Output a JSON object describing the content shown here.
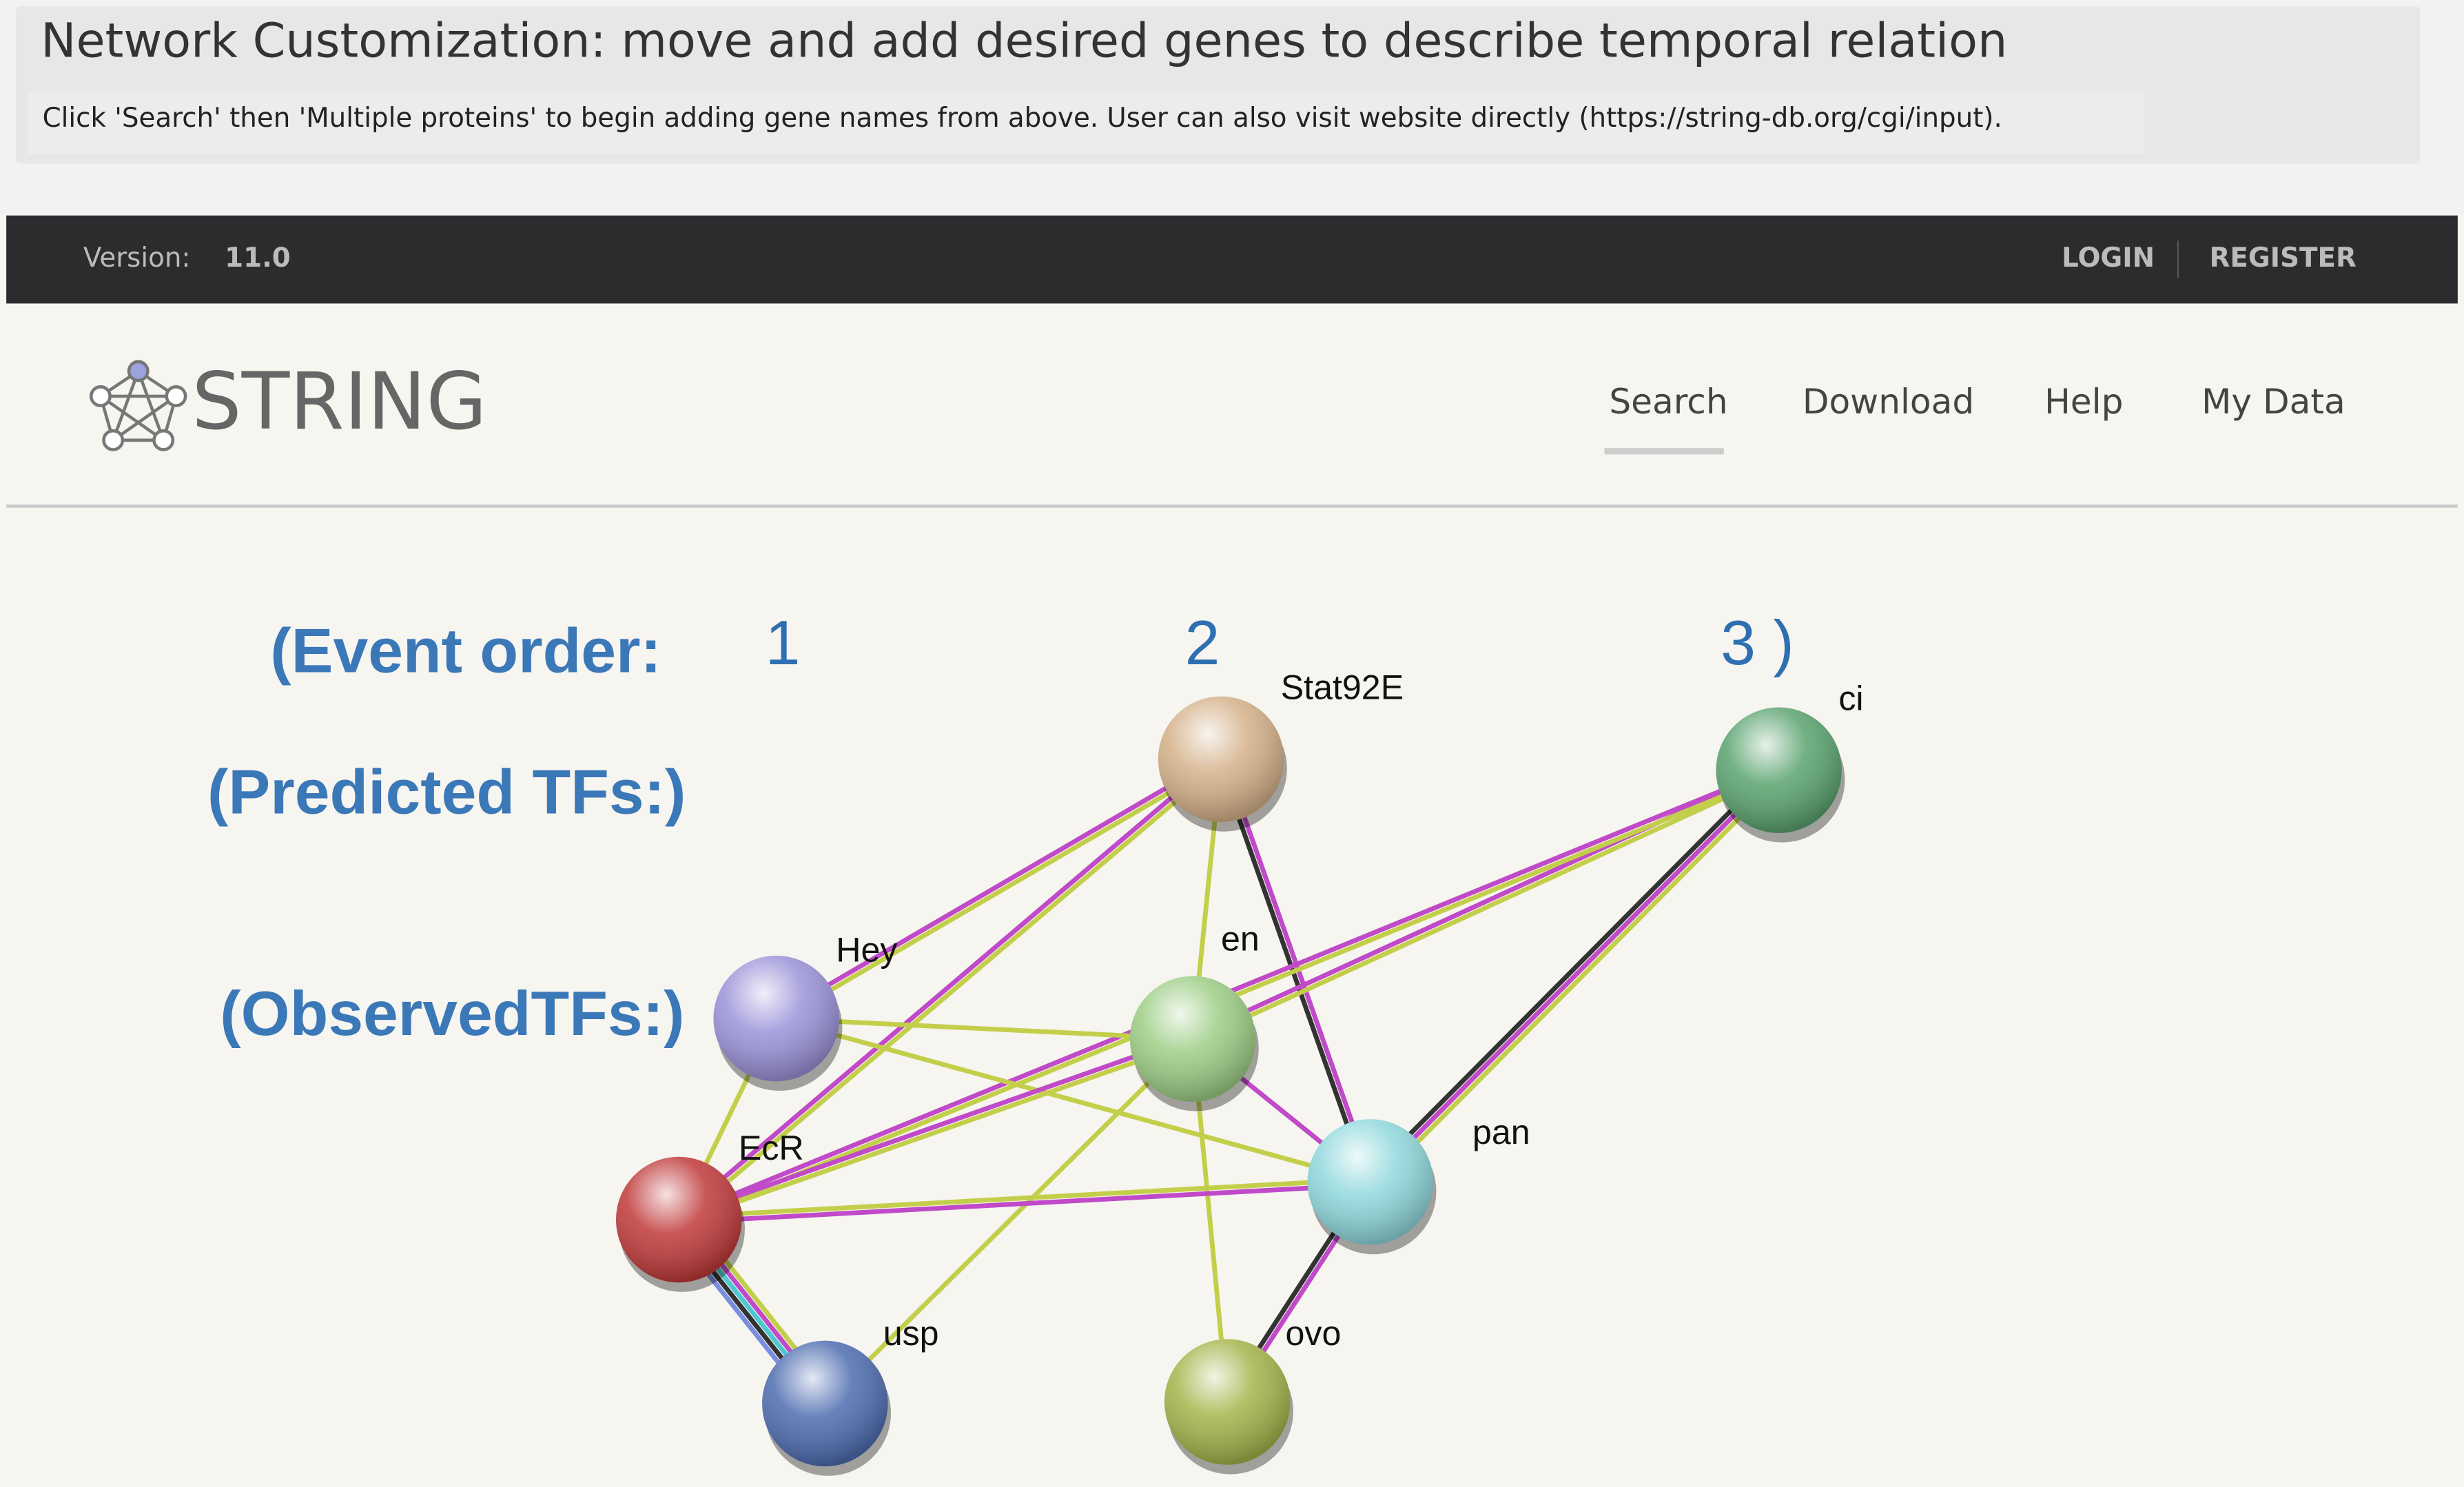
{
  "header": {
    "title": "Network Customization: move and add desired genes to describe temporal relation",
    "instruction": "Click 'Search' then 'Multiple proteins' to begin adding gene names from above. User can also visit website directly (https://string-db.org/cgi/input)."
  },
  "topbar": {
    "version_label": "Version:",
    "version": "11.0",
    "login": "LOGIN",
    "register": "REGISTER"
  },
  "logo": "STRING",
  "nav": [
    "Search",
    "Download",
    "Help",
    "My Data"
  ],
  "annotations": {
    "event_order": "(Event order:",
    "order_1": "1",
    "order_2": "2",
    "order_3": "3 )",
    "predicted": "(Predicted TFs:)",
    "observed": "(ObservedTFs:)"
  },
  "network": {
    "nodes": [
      {
        "label": "Stat92E"
      },
      {
        "label": "ci"
      },
      {
        "label": "Hey"
      },
      {
        "label": "en"
      },
      {
        "label": "EcR"
      },
      {
        "label": "pan"
      },
      {
        "label": "usp"
      },
      {
        "label": "ovo"
      }
    ]
  }
}
